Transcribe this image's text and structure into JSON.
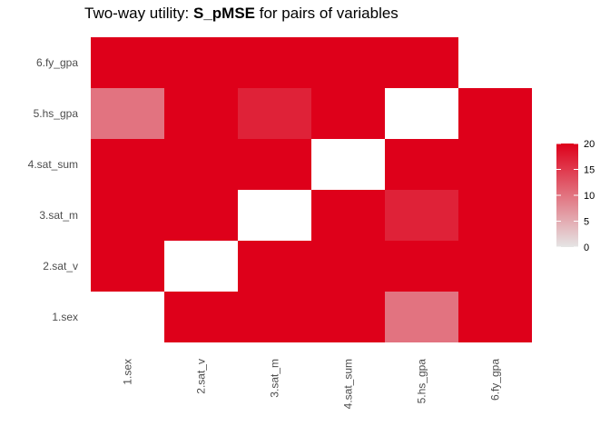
{
  "chart_data": {
    "type": "heatmap",
    "title_prefix": "Two-way utility: ",
    "title_bold": "S_pMSE",
    "title_suffix": " for pairs of variables",
    "xlabel": "",
    "ylabel": "",
    "x_categories": [
      "1.sex",
      "2.sat_v",
      "3.sat_m",
      "4.sat_sum",
      "5.hs_gpa",
      "6.fy_gpa"
    ],
    "y_categories": [
      "1.sex",
      "2.sat_v",
      "3.sat_m",
      "4.sat_sum",
      "5.hs_gpa",
      "6.fy_gpa"
    ],
    "cells": [
      {
        "x": "2.sat_v",
        "y": "1.sex",
        "value": 20
      },
      {
        "x": "3.sat_m",
        "y": "1.sex",
        "value": 20
      },
      {
        "x": "4.sat_sum",
        "y": "1.sex",
        "value": 20
      },
      {
        "x": "5.hs_gpa",
        "y": "1.sex",
        "value": 10
      },
      {
        "x": "6.fy_gpa",
        "y": "1.sex",
        "value": 20
      },
      {
        "x": "1.sex",
        "y": "2.sat_v",
        "value": 20
      },
      {
        "x": "3.sat_m",
        "y": "2.sat_v",
        "value": 20
      },
      {
        "x": "4.sat_sum",
        "y": "2.sat_v",
        "value": 20
      },
      {
        "x": "5.hs_gpa",
        "y": "2.sat_v",
        "value": 20
      },
      {
        "x": "6.fy_gpa",
        "y": "2.sat_v",
        "value": 20
      },
      {
        "x": "1.sex",
        "y": "3.sat_m",
        "value": 20
      },
      {
        "x": "2.sat_v",
        "y": "3.sat_m",
        "value": 20
      },
      {
        "x": "4.sat_sum",
        "y": "3.sat_m",
        "value": 20
      },
      {
        "x": "5.hs_gpa",
        "y": "3.sat_m",
        "value": 17
      },
      {
        "x": "6.fy_gpa",
        "y": "3.sat_m",
        "value": 20
      },
      {
        "x": "1.sex",
        "y": "4.sat_sum",
        "value": 20
      },
      {
        "x": "2.sat_v",
        "y": "4.sat_sum",
        "value": 20
      },
      {
        "x": "3.sat_m",
        "y": "4.sat_sum",
        "value": 20
      },
      {
        "x": "5.hs_gpa",
        "y": "4.sat_sum",
        "value": 20
      },
      {
        "x": "6.fy_gpa",
        "y": "4.sat_sum",
        "value": 20
      },
      {
        "x": "1.sex",
        "y": "5.hs_gpa",
        "value": 10
      },
      {
        "x": "2.sat_v",
        "y": "5.hs_gpa",
        "value": 20
      },
      {
        "x": "3.sat_m",
        "y": "5.hs_gpa",
        "value": 17
      },
      {
        "x": "4.sat_sum",
        "y": "5.hs_gpa",
        "value": 20
      },
      {
        "x": "6.fy_gpa",
        "y": "5.hs_gpa",
        "value": 20
      },
      {
        "x": "1.sex",
        "y": "6.fy_gpa",
        "value": 20
      },
      {
        "x": "2.sat_v",
        "y": "6.fy_gpa",
        "value": 20
      },
      {
        "x": "3.sat_m",
        "y": "6.fy_gpa",
        "value": 20
      },
      {
        "x": "4.sat_sum",
        "y": "6.fy_gpa",
        "value": 20
      },
      {
        "x": "5.hs_gpa",
        "y": "6.fy_gpa",
        "value": 20
      }
    ],
    "legend": {
      "position": "right",
      "min": 0,
      "max": 20,
      "ticks": [
        0,
        5,
        10,
        15,
        20
      ],
      "color_low": "#e5e5e5",
      "color_high": "#de001a"
    },
    "grid": false
  }
}
